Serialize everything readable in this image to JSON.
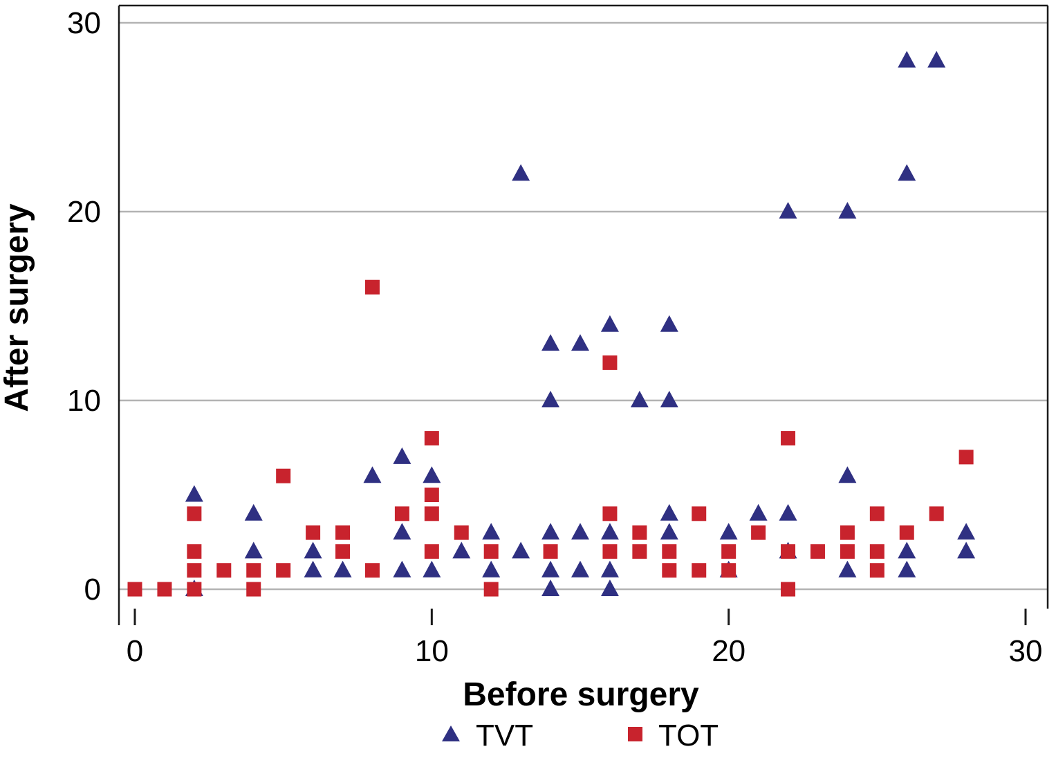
{
  "figure": {
    "background": "#ffffff",
    "grid_color": "#b3b3b3",
    "axis_color": "#1a1a1a"
  },
  "chart_data": {
    "type": "scatter",
    "title": "",
    "xlabel": "Before surgery",
    "ylabel": "After surgery",
    "xlim": [
      0,
      30
    ],
    "ylim": [
      0,
      30
    ],
    "xticks": [
      0,
      10,
      20,
      30
    ],
    "yticks": [
      0,
      10,
      20,
      30
    ],
    "grid": "horizontal",
    "legend_position": "bottom",
    "series": [
      {
        "name": "TVT",
        "marker": "triangle",
        "color": "#2f3082",
        "points": [
          [
            2,
            5
          ],
          [
            2,
            0
          ],
          [
            4,
            4
          ],
          [
            4,
            2
          ],
          [
            6,
            2
          ],
          [
            6,
            1
          ],
          [
            7,
            1
          ],
          [
            8,
            6
          ],
          [
            9,
            7
          ],
          [
            9,
            3
          ],
          [
            9,
            1
          ],
          [
            10,
            6
          ],
          [
            10,
            1
          ],
          [
            11,
            2
          ],
          [
            12,
            3
          ],
          [
            12,
            1
          ],
          [
            13,
            22
          ],
          [
            13,
            2
          ],
          [
            14,
            13
          ],
          [
            14,
            10
          ],
          [
            14,
            3
          ],
          [
            14,
            1
          ],
          [
            14,
            0
          ],
          [
            15,
            13
          ],
          [
            15,
            3
          ],
          [
            15,
            1
          ],
          [
            16,
            14
          ],
          [
            16,
            3
          ],
          [
            16,
            1
          ],
          [
            16,
            0
          ],
          [
            17,
            10
          ],
          [
            18,
            14
          ],
          [
            18,
            10
          ],
          [
            18,
            4
          ],
          [
            18,
            3
          ],
          [
            20,
            3
          ],
          [
            20,
            1
          ],
          [
            21,
            4
          ],
          [
            22,
            20
          ],
          [
            22,
            4
          ],
          [
            22,
            2
          ],
          [
            24,
            20
          ],
          [
            24,
            6
          ],
          [
            24,
            1
          ],
          [
            26,
            28
          ],
          [
            26,
            22
          ],
          [
            26,
            2
          ],
          [
            26,
            1
          ],
          [
            27,
            28
          ],
          [
            28,
            3
          ],
          [
            28,
            2
          ]
        ]
      },
      {
        "name": "TOT",
        "marker": "square",
        "color": "#c8232d",
        "points": [
          [
            0,
            0
          ],
          [
            1,
            0
          ],
          [
            2,
            4
          ],
          [
            2,
            2
          ],
          [
            2,
            1
          ],
          [
            2,
            0
          ],
          [
            3,
            1
          ],
          [
            4,
            1
          ],
          [
            4,
            0
          ],
          [
            5,
            6
          ],
          [
            5,
            1
          ],
          [
            6,
            3
          ],
          [
            7,
            3
          ],
          [
            7,
            2
          ],
          [
            8,
            16
          ],
          [
            8,
            1
          ],
          [
            9,
            4
          ],
          [
            10,
            8
          ],
          [
            10,
            5
          ],
          [
            10,
            4
          ],
          [
            10,
            2
          ],
          [
            11,
            3
          ],
          [
            12,
            2
          ],
          [
            12,
            0
          ],
          [
            14,
            2
          ],
          [
            16,
            12
          ],
          [
            16,
            4
          ],
          [
            16,
            2
          ],
          [
            17,
            3
          ],
          [
            17,
            2
          ],
          [
            18,
            2
          ],
          [
            18,
            1
          ],
          [
            19,
            4
          ],
          [
            19,
            1
          ],
          [
            20,
            2
          ],
          [
            20,
            1
          ],
          [
            21,
            3
          ],
          [
            22,
            8
          ],
          [
            22,
            2
          ],
          [
            22,
            0
          ],
          [
            23,
            2
          ],
          [
            24,
            3
          ],
          [
            24,
            2
          ],
          [
            25,
            4
          ],
          [
            25,
            2
          ],
          [
            25,
            1
          ],
          [
            26,
            3
          ],
          [
            27,
            4
          ],
          [
            28,
            7
          ]
        ]
      }
    ]
  }
}
